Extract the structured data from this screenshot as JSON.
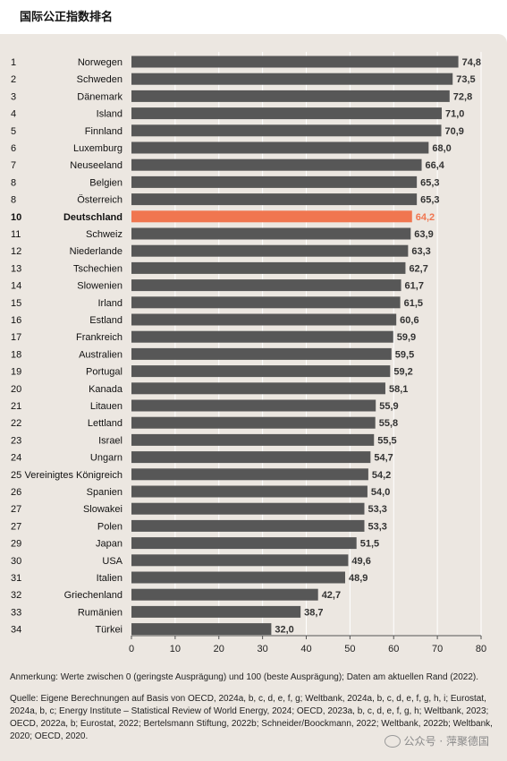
{
  "title": "国际公正指数排名",
  "chart_data": {
    "type": "bar",
    "orientation": "horizontal",
    "highlight_index": 9,
    "ranks": [
      "1",
      "2",
      "3",
      "4",
      "5",
      "6",
      "7",
      "8",
      "8",
      "10",
      "11",
      "12",
      "13",
      "14",
      "15",
      "16",
      "17",
      "18",
      "19",
      "20",
      "21",
      "22",
      "23",
      "24",
      "25",
      "26",
      "27",
      "27",
      "29",
      "30",
      "31",
      "32",
      "33",
      "34"
    ],
    "categories": [
      "Norwegen",
      "Schweden",
      "Dänemark",
      "Island",
      "Finnland",
      "Luxemburg",
      "Neuseeland",
      "Belgien",
      "Österreich",
      "Deutschland",
      "Schweiz",
      "Niederlande",
      "Tschechien",
      "Slowenien",
      "Irland",
      "Estland",
      "Frankreich",
      "Australien",
      "Portugal",
      "Kanada",
      "Litauen",
      "Lettland",
      "Israel",
      "Ungarn",
      "Vereinigtes Königreich",
      "Spanien",
      "Slowakei",
      "Polen",
      "Japan",
      "USA",
      "Italien",
      "Griechenland",
      "Rumänien",
      "Türkei"
    ],
    "values": [
      74.8,
      73.5,
      72.8,
      71.0,
      70.9,
      68.0,
      66.4,
      65.3,
      65.3,
      64.2,
      63.9,
      63.3,
      62.7,
      61.7,
      61.5,
      60.6,
      59.9,
      59.5,
      59.2,
      58.1,
      55.9,
      55.8,
      55.5,
      54.7,
      54.2,
      54.0,
      53.3,
      53.3,
      51.5,
      49.6,
      48.9,
      42.7,
      38.7,
      32.0
    ],
    "value_labels": [
      "74,8",
      "73,5",
      "72,8",
      "71,0",
      "70,9",
      "68,0",
      "66,4",
      "65,3",
      "65,3",
      "64,2",
      "63,9",
      "63,3",
      "62,7",
      "61,7",
      "61,5",
      "60,6",
      "59,9",
      "59,5",
      "59,2",
      "58,1",
      "55,9",
      "55,8",
      "55,5",
      "54,7",
      "54,2",
      "54,0",
      "53,3",
      "53,3",
      "51,5",
      "49,6",
      "48,9",
      "42,7",
      "38,7",
      "32,0"
    ],
    "xlim": [
      0,
      80
    ],
    "xticks": [
      0,
      10,
      20,
      30,
      40,
      50,
      60,
      70,
      80
    ],
    "grid": true,
    "colors": {
      "bar": "#575757",
      "highlight": "#f07650",
      "grid": "#ffffff",
      "background": "#ece7e1"
    }
  },
  "notes": {
    "remark": "Anmerkung: Werte zwischen 0 (geringste Ausprägung) und 100 (beste Ausprägung); Daten am aktuellen Rand (2022).",
    "source": "Quelle: Eigene Berechnungen auf Basis von OECD, 2024a, b, c, d, e, f, g; Weltbank, 2024a, b, c, d, e, f, g, h, i; Eurostat, 2024a, b, c; Energy Institute – Statistical Review of World Energy, 2024; OECD, 2023a, b, c, d, e, f, g, h; Weltbank, 2023; OECD, 2022a, b; Eurostat, 2022; Bertelsmann Stiftung, 2022b; Schneider/Boockmann, 2022; Weltbank, 2022b; Weltbank, 2020; OECD, 2020."
  },
  "watermark": "公众号 · 萍聚德国"
}
